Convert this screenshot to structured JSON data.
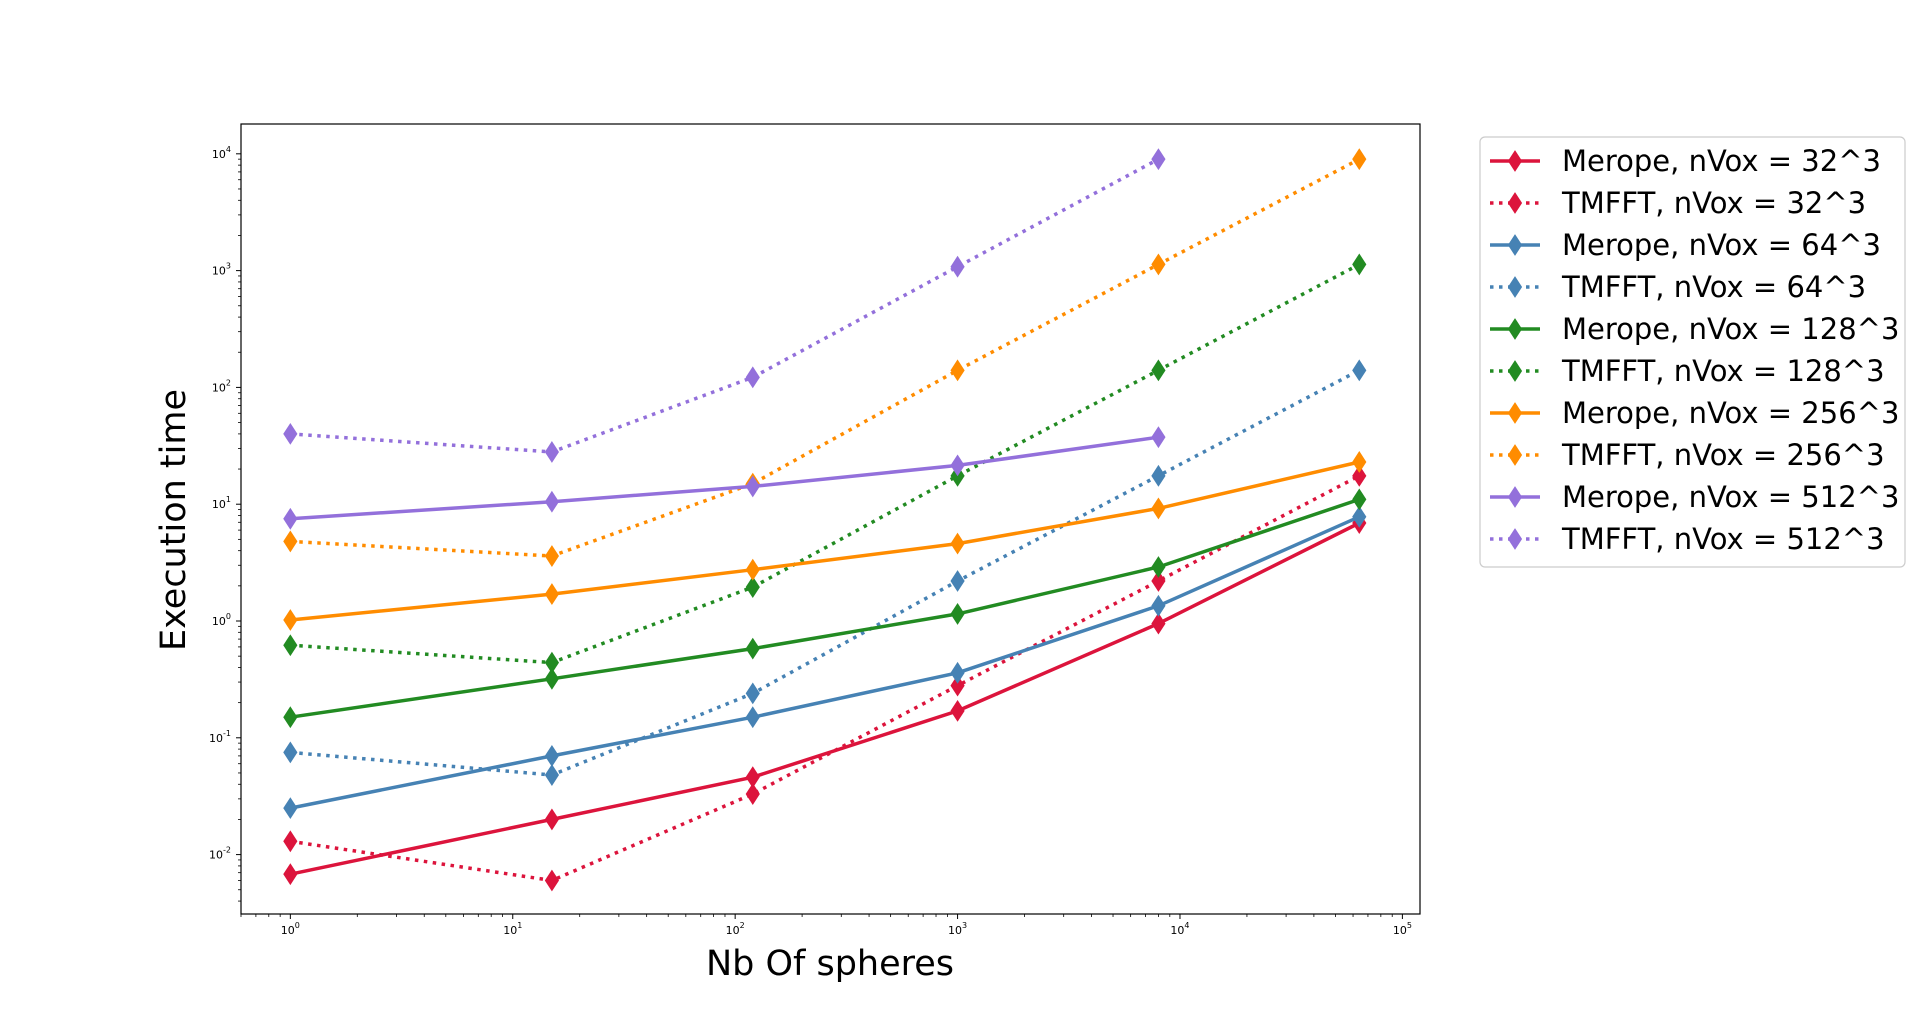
{
  "chart_data": {
    "type": "line",
    "xlabel": "Nb Of spheres",
    "ylabel": "Execution time",
    "xscale": "log",
    "yscale": "log",
    "xlim": [
      0.6,
      120000
    ],
    "ylim": [
      0.0031,
      18000
    ],
    "x_ticks": [
      {
        "base": "10",
        "exp": "0"
      },
      {
        "base": "10",
        "exp": "1"
      },
      {
        "base": "10",
        "exp": "2"
      },
      {
        "base": "10",
        "exp": "3"
      },
      {
        "base": "10",
        "exp": "4"
      },
      {
        "base": "10",
        "exp": "5"
      }
    ],
    "y_ticks": [
      {
        "base": "10",
        "exp": "-2"
      },
      {
        "base": "10",
        "exp": "-1"
      },
      {
        "base": "10",
        "exp": "0"
      },
      {
        "base": "10",
        "exp": "1"
      },
      {
        "base": "10",
        "exp": "2"
      },
      {
        "base": "10",
        "exp": "3"
      },
      {
        "base": "10",
        "exp": "4"
      }
    ],
    "legend_position": "outside-right",
    "grid": false,
    "x": [
      1,
      15,
      120,
      1000,
      8000,
      64000
    ],
    "series": [
      {
        "name": "Merope, nVox = 32^3",
        "color": "#dc143c",
        "style": "solid",
        "marker": "thin-diamond",
        "values": [
          0.0068,
          0.02,
          0.046,
          0.17,
          0.95,
          6.9
        ]
      },
      {
        "name": "TMFFT, nVox = 32^3",
        "color": "#dc143c",
        "style": "dotted",
        "marker": "thin-diamond",
        "values": [
          0.013,
          0.006,
          0.033,
          0.28,
          2.2,
          17.5
        ]
      },
      {
        "name": "Merope, nVox = 64^3",
        "color": "#4682b4",
        "style": "solid",
        "marker": "thin-diamond",
        "values": [
          0.025,
          0.07,
          0.15,
          0.36,
          1.35,
          7.8
        ]
      },
      {
        "name": "TMFFT, nVox = 64^3",
        "color": "#4682b4",
        "style": "dotted",
        "marker": "thin-diamond",
        "values": [
          0.075,
          0.048,
          0.24,
          2.2,
          17.5,
          140
        ]
      },
      {
        "name": "Merope, nVox = 128^3",
        "color": "#228b22",
        "style": "solid",
        "marker": "thin-diamond",
        "values": [
          0.15,
          0.32,
          0.58,
          1.15,
          2.9,
          11
        ]
      },
      {
        "name": "TMFFT, nVox = 128^3",
        "color": "#228b22",
        "style": "dotted",
        "marker": "thin-diamond",
        "values": [
          0.62,
          0.44,
          1.95,
          17.5,
          140,
          1130
        ]
      },
      {
        "name": "Merope, nVox = 256^3",
        "color": "#ff8c00",
        "style": "solid",
        "marker": "thin-diamond",
        "values": [
          1.02,
          1.7,
          2.75,
          4.6,
          9.2,
          23
        ]
      },
      {
        "name": "TMFFT, nVox = 256^3",
        "color": "#ff8c00",
        "style": "dotted",
        "marker": "thin-diamond",
        "values": [
          4.8,
          3.6,
          15,
          140,
          1130,
          9000
        ]
      },
      {
        "name": "Merope, nVox = 512^3",
        "color": "#9370db",
        "style": "solid",
        "marker": "thin-diamond",
        "values": [
          7.5,
          10.5,
          14.2,
          21.5,
          37.5,
          null
        ]
      },
      {
        "name": "TMFFT, nVox = 512^3",
        "color": "#9370db",
        "style": "dotted",
        "marker": "thin-diamond",
        "values": [
          40,
          28,
          122,
          1080,
          9000,
          null
        ]
      }
    ]
  }
}
